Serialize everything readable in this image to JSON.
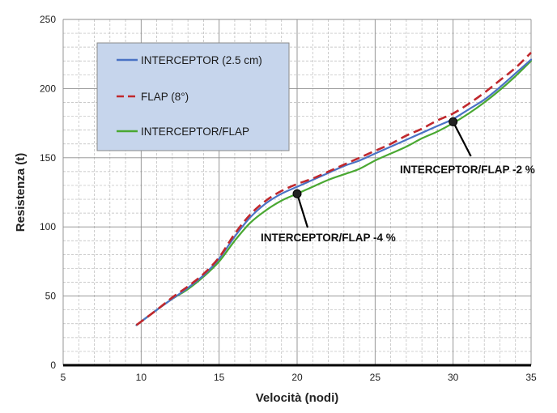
{
  "chart_data": {
    "type": "line",
    "xlabel": "Velocità  (nodi)",
    "ylabel": "Resistenza (t)",
    "xlim": [
      5,
      35
    ],
    "ylim": [
      0,
      250
    ],
    "x_ticks": [
      5,
      10,
      15,
      20,
      25,
      30,
      35
    ],
    "y_ticks": [
      0,
      50,
      100,
      150,
      200,
      250
    ],
    "grid": true,
    "legend_position": "top-left",
    "series": [
      {
        "name": "INTERCEPTOR (2.5 cm)",
        "color": "#4a72c4",
        "style": "solid",
        "points": [
          [
            9.7,
            29
          ],
          [
            11,
            40
          ],
          [
            12,
            48
          ],
          [
            13,
            56
          ],
          [
            14,
            65
          ],
          [
            15,
            77
          ],
          [
            16,
            93
          ],
          [
            17,
            107
          ],
          [
            18,
            117
          ],
          [
            19,
            124
          ],
          [
            20,
            129
          ],
          [
            21,
            134
          ],
          [
            22,
            139
          ],
          [
            23,
            144
          ],
          [
            24,
            148
          ],
          [
            25,
            153
          ],
          [
            26,
            158
          ],
          [
            27,
            163
          ],
          [
            28,
            168
          ],
          [
            29,
            173
          ],
          [
            30,
            178
          ],
          [
            31,
            185
          ],
          [
            32,
            192
          ],
          [
            33,
            201
          ],
          [
            34,
            211
          ],
          [
            35,
            221
          ]
        ]
      },
      {
        "name": "FLAP (8°)",
        "color": "#c0282d",
        "style": "dashed",
        "points": [
          [
            9.7,
            29
          ],
          [
            11,
            40
          ],
          [
            12,
            49
          ],
          [
            13,
            57
          ],
          [
            14,
            66
          ],
          [
            15,
            78
          ],
          [
            16,
            95
          ],
          [
            17,
            109
          ],
          [
            18,
            119
          ],
          [
            19,
            126
          ],
          [
            20,
            131
          ],
          [
            21,
            135
          ],
          [
            22,
            140
          ],
          [
            23,
            145
          ],
          [
            24,
            150
          ],
          [
            25,
            155
          ],
          [
            26,
            160
          ],
          [
            27,
            166
          ],
          [
            28,
            171
          ],
          [
            29,
            177
          ],
          [
            30,
            182
          ],
          [
            31,
            189
          ],
          [
            32,
            197
          ],
          [
            33,
            206
          ],
          [
            34,
            215
          ],
          [
            35,
            226
          ]
        ]
      },
      {
        "name": "INTERCEPTOR/FLAP",
        "color": "#4aa832",
        "style": "solid",
        "points": [
          [
            9.7,
            29
          ],
          [
            11,
            40
          ],
          [
            12,
            48
          ],
          [
            13,
            55
          ],
          [
            14,
            64
          ],
          [
            15,
            75
          ],
          [
            16,
            90
          ],
          [
            17,
            103
          ],
          [
            18,
            112
          ],
          [
            19,
            119
          ],
          [
            20,
            124
          ],
          [
            21,
            129
          ],
          [
            22,
            134
          ],
          [
            23,
            138
          ],
          [
            24,
            142
          ],
          [
            25,
            148
          ],
          [
            26,
            153
          ],
          [
            27,
            158
          ],
          [
            28,
            164
          ],
          [
            29,
            169
          ],
          [
            30,
            175
          ],
          [
            31,
            182
          ],
          [
            32,
            190
          ],
          [
            33,
            199
          ],
          [
            34,
            209
          ],
          [
            35,
            220
          ]
        ]
      }
    ],
    "annotations": [
      {
        "text": "INTERCEPTOR/FLAP -4 %",
        "x": 20,
        "y": 124
      },
      {
        "text": "INTERCEPTOR/FLAP -2 %",
        "x": 30,
        "y": 176
      }
    ]
  }
}
